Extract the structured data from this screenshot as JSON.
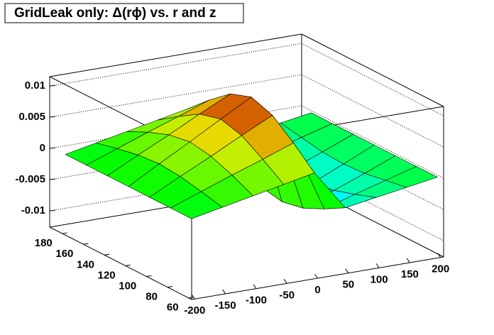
{
  "chart_data": {
    "type": "surface3d",
    "title": "GridLeak only: Δ(rϕ) vs. r and z",
    "x": [
      -200,
      -150,
      -100,
      -50,
      0,
      50,
      100,
      150,
      200
    ],
    "y": [
      60,
      80,
      100,
      120,
      140,
      160,
      180
    ],
    "values": [
      [
        0,
        0.001,
        0.002,
        0.003,
        0.004,
        -0.0024,
        -0.0016,
        -0.0008,
        0
      ],
      [
        0,
        0.0018,
        0.0036,
        0.0053,
        0.0071,
        -0.0043,
        -0.0028,
        -0.0014,
        0
      ],
      [
        0,
        0.0025,
        0.0049,
        0.0074,
        0.0098,
        -0.0059,
        -0.0039,
        -0.002,
        0
      ],
      [
        0,
        0.0028,
        0.0055,
        0.0083,
        0.011,
        -0.0066,
        -0.0044,
        -0.0022,
        0
      ],
      [
        0,
        0.0025,
        0.0049,
        0.0074,
        0.0098,
        -0.0059,
        -0.0039,
        -0.002,
        0
      ],
      [
        0,
        0.0018,
        0.0036,
        0.0053,
        0.0071,
        -0.0043,
        -0.0028,
        -0.0014,
        0
      ],
      [
        0,
        0.001,
        0.002,
        0.003,
        0.004,
        -0.0024,
        -0.0016,
        -0.0008,
        0
      ]
    ],
    "xlim": [
      -205,
      205
    ],
    "xticks": [
      -200,
      -150,
      -100,
      -50,
      0,
      50,
      100,
      150,
      200
    ],
    "ylim": [
      57,
      192
    ],
    "yticks": [
      60,
      80,
      100,
      120,
      140,
      160,
      180
    ],
    "zlim": [
      -0.0126,
      0.0115
    ],
    "zticks": [
      -0.01,
      -0.005,
      0,
      0.005,
      0.01
    ],
    "grid": true
  }
}
